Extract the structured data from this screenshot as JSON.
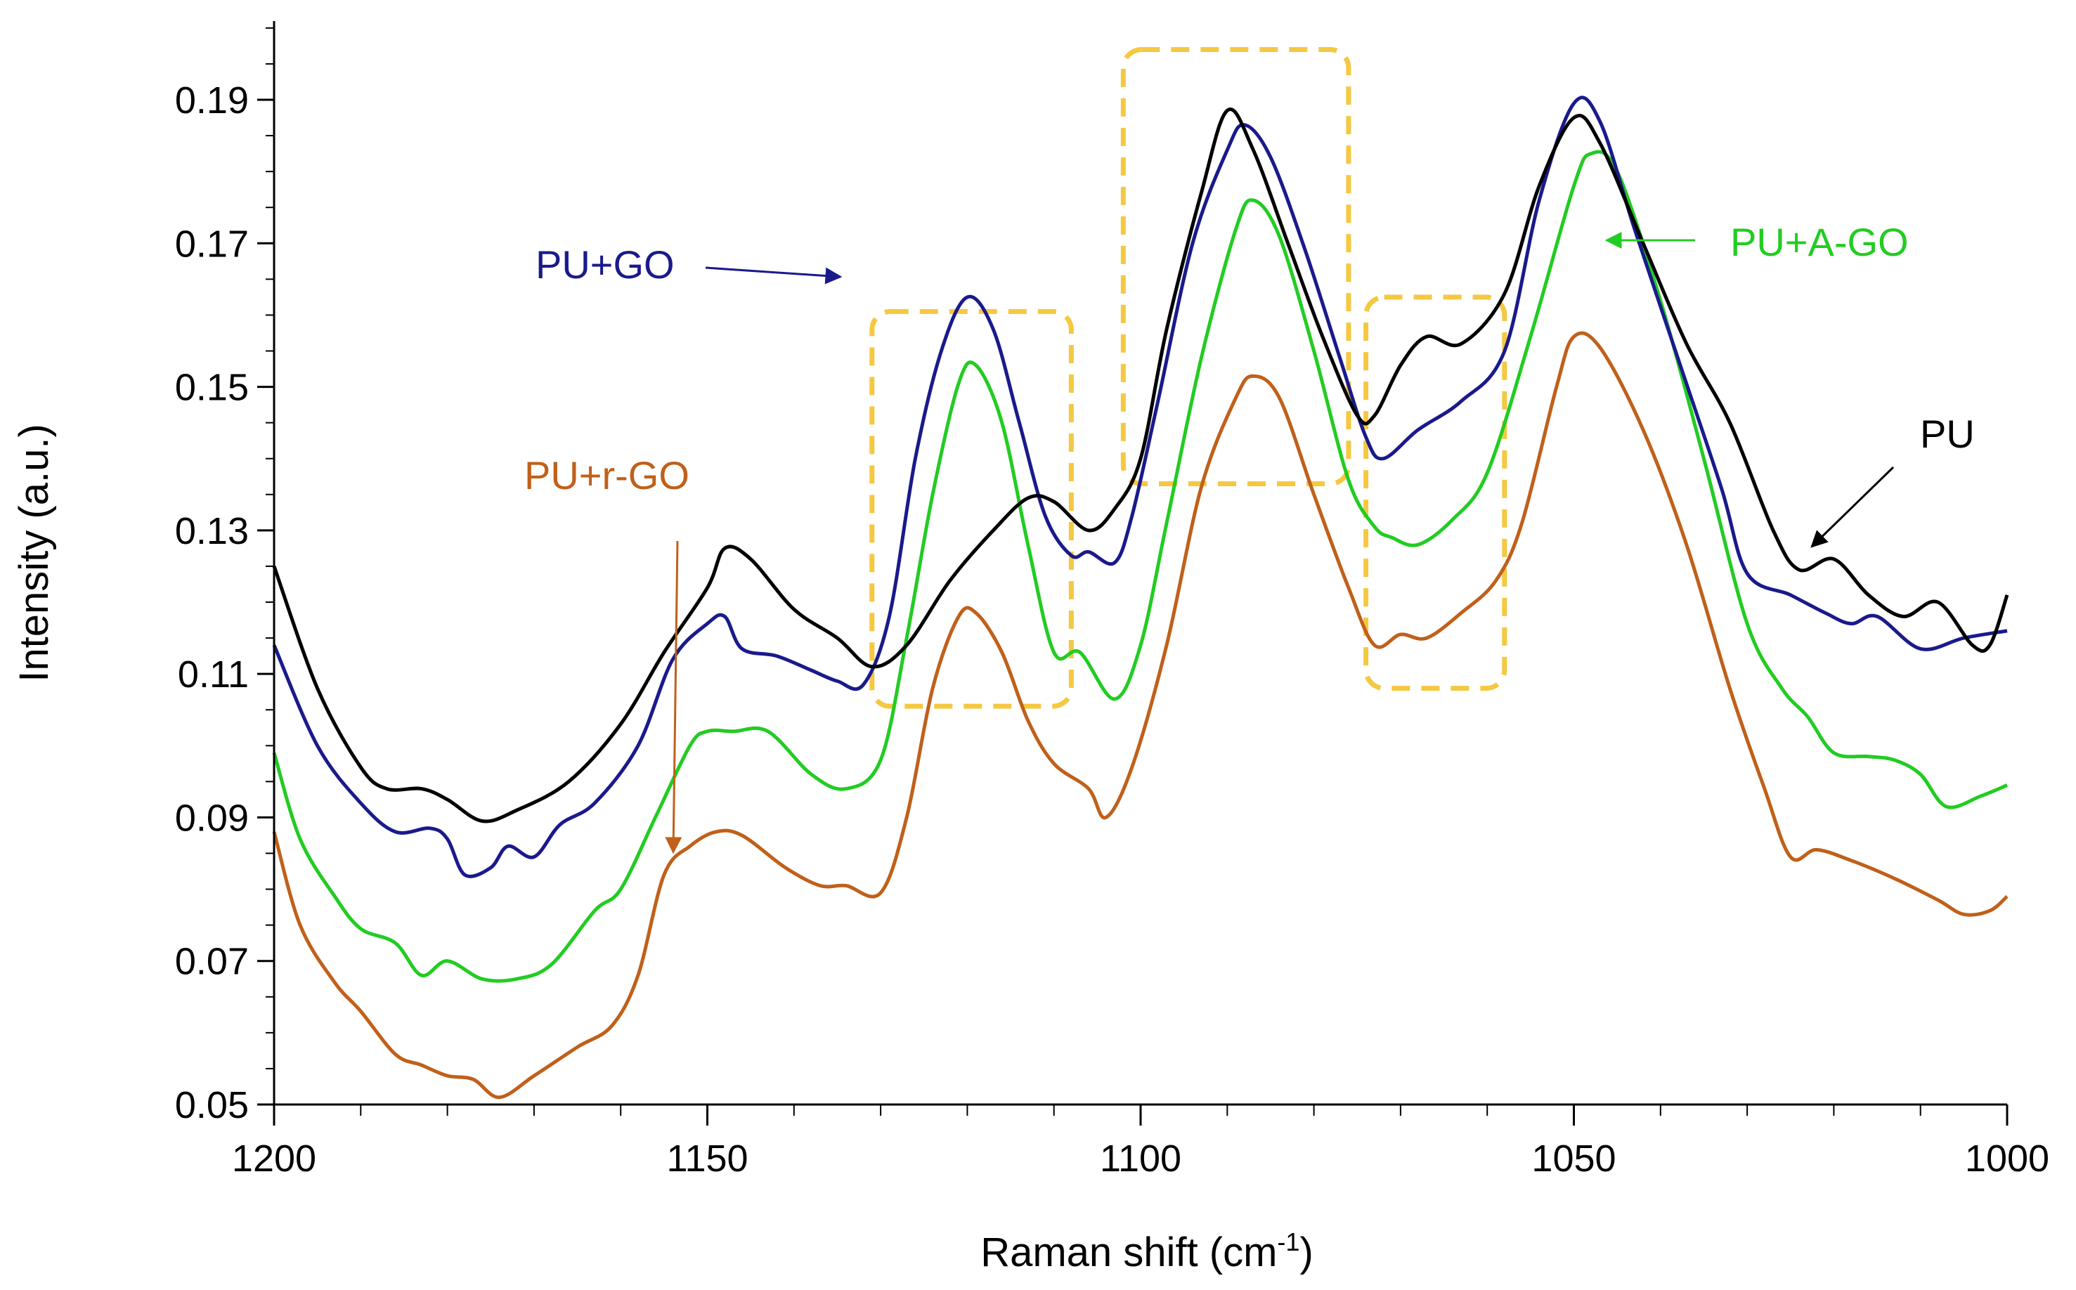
{
  "chart_data": {
    "type": "line",
    "title": "",
    "xlabel": "Raman shift (cm",
    "xlabel_sup": "-1",
    "xlabel_suffix": ")",
    "ylabel": "Intensity (a.u.)",
    "xlim": [
      1200,
      1000
    ],
    "ylim": [
      0.05,
      0.2
    ],
    "x_ticks": [
      1200,
      1150,
      1100,
      1050,
      1000
    ],
    "x_tick_labels": [
      "1200",
      "1150",
      "1100",
      "1050",
      "1000"
    ],
    "y_ticks": [
      0.05,
      0.07,
      0.09,
      0.11,
      0.13,
      0.15,
      0.17,
      0.19
    ],
    "y_tick_labels": [
      "0.05",
      "0.07",
      "0.09",
      "0.11",
      "0.13",
      "0.15",
      "0.17",
      "0.19"
    ],
    "series": [
      {
        "name": "PU",
        "color": "#000000",
        "points": [
          [
            1200,
            0.125
          ],
          [
            1195,
            0.108
          ],
          [
            1190,
            0.097
          ],
          [
            1187,
            0.094
          ],
          [
            1183,
            0.094
          ],
          [
            1180,
            0.0925
          ],
          [
            1176,
            0.0895
          ],
          [
            1172,
            0.091
          ],
          [
            1166,
            0.095
          ],
          [
            1160,
            0.103
          ],
          [
            1155,
            0.113
          ],
          [
            1150,
            0.122
          ],
          [
            1148,
            0.1275
          ],
          [
            1145,
            0.126
          ],
          [
            1140,
            0.119
          ],
          [
            1135,
            0.115
          ],
          [
            1131,
            0.111
          ],
          [
            1127,
            0.114
          ],
          [
            1122,
            0.123
          ],
          [
            1117,
            0.13
          ],
          [
            1113,
            0.1345
          ],
          [
            1110,
            0.134
          ],
          [
            1106,
            0.13
          ],
          [
            1103,
            0.133
          ],
          [
            1100,
            0.14
          ],
          [
            1097,
            0.158
          ],
          [
            1093,
            0.177
          ],
          [
            1090,
            0.1885
          ],
          [
            1087,
            0.183
          ],
          [
            1083,
            0.17
          ],
          [
            1079,
            0.157
          ],
          [
            1075,
            0.146
          ],
          [
            1073,
            0.146
          ],
          [
            1070,
            0.153
          ],
          [
            1067,
            0.157
          ],
          [
            1063,
            0.156
          ],
          [
            1058,
            0.163
          ],
          [
            1054,
            0.178
          ],
          [
            1050,
            0.1875
          ],
          [
            1047,
            0.184
          ],
          [
            1042,
            0.17
          ],
          [
            1037,
            0.156
          ],
          [
            1032,
            0.145
          ],
          [
            1027,
            0.13
          ],
          [
            1024,
            0.1245
          ],
          [
            1020,
            0.126
          ],
          [
            1016,
            0.121
          ],
          [
            1012,
            0.118
          ],
          [
            1008,
            0.12
          ],
          [
            1004,
            0.114
          ],
          [
            1002,
            0.114
          ],
          [
            1000,
            0.121
          ]
        ]
      },
      {
        "name": "PU+GO",
        "color": "#1a1a8c",
        "points": [
          [
            1200,
            0.114
          ],
          [
            1195,
            0.1
          ],
          [
            1190,
            0.092
          ],
          [
            1186,
            0.088
          ],
          [
            1182,
            0.0885
          ],
          [
            1180,
            0.087
          ],
          [
            1178,
            0.082
          ],
          [
            1175,
            0.083
          ],
          [
            1173,
            0.086
          ],
          [
            1170,
            0.0845
          ],
          [
            1167,
            0.089
          ],
          [
            1163,
            0.092
          ],
          [
            1158,
            0.1
          ],
          [
            1154,
            0.112
          ],
          [
            1150,
            0.117
          ],
          [
            1148,
            0.118
          ],
          [
            1146,
            0.1135
          ],
          [
            1142,
            0.1125
          ],
          [
            1138,
            0.1105
          ],
          [
            1135,
            0.109
          ],
          [
            1132,
            0.1085
          ],
          [
            1129,
            0.118
          ],
          [
            1126,
            0.14
          ],
          [
            1123,
            0.155
          ],
          [
            1120,
            0.1625
          ],
          [
            1117,
            0.158
          ],
          [
            1114,
            0.145
          ],
          [
            1111,
            0.132
          ],
          [
            1108,
            0.1265
          ],
          [
            1106,
            0.127
          ],
          [
            1103,
            0.1255
          ],
          [
            1101,
            0.132
          ],
          [
            1098,
            0.148
          ],
          [
            1094,
            0.17
          ],
          [
            1090,
            0.183
          ],
          [
            1088,
            0.1865
          ],
          [
            1085,
            0.182
          ],
          [
            1081,
            0.169
          ],
          [
            1077,
            0.154
          ],
          [
            1074,
            0.143
          ],
          [
            1072,
            0.14
          ],
          [
            1068,
            0.144
          ],
          [
            1063,
            0.148
          ],
          [
            1058,
            0.155
          ],
          [
            1054,
            0.176
          ],
          [
            1050,
            0.1895
          ],
          [
            1047,
            0.187
          ],
          [
            1043,
            0.172
          ],
          [
            1038,
            0.154
          ],
          [
            1033,
            0.136
          ],
          [
            1030,
            0.124
          ],
          [
            1025,
            0.121
          ],
          [
            1021,
            0.1185
          ],
          [
            1018,
            0.117
          ],
          [
            1015,
            0.118
          ],
          [
            1010,
            0.1135
          ],
          [
            1005,
            0.115
          ],
          [
            1000,
            0.116
          ]
        ]
      },
      {
        "name": "PU+A-GO",
        "color": "#22cc22",
        "points": [
          [
            1200,
            0.099
          ],
          [
            1197,
            0.087
          ],
          [
            1193,
            0.079
          ],
          [
            1190,
            0.0745
          ],
          [
            1186,
            0.0725
          ],
          [
            1183,
            0.068
          ],
          [
            1180,
            0.07
          ],
          [
            1176,
            0.0675
          ],
          [
            1172,
            0.0675
          ],
          [
            1168,
            0.0695
          ],
          [
            1163,
            0.077
          ],
          [
            1160,
            0.08
          ],
          [
            1156,
            0.09
          ],
          [
            1152,
            0.1
          ],
          [
            1150,
            0.102
          ],
          [
            1147,
            0.102
          ],
          [
            1143,
            0.102
          ],
          [
            1138,
            0.096
          ],
          [
            1134,
            0.094
          ],
          [
            1130,
            0.098
          ],
          [
            1127,
            0.115
          ],
          [
            1124,
            0.135
          ],
          [
            1121,
            0.1505
          ],
          [
            1119,
            0.153
          ],
          [
            1116,
            0.145
          ],
          [
            1113,
            0.128
          ],
          [
            1110,
            0.113
          ],
          [
            1107,
            0.113
          ],
          [
            1103,
            0.1065
          ],
          [
            1100,
            0.114
          ],
          [
            1097,
            0.131
          ],
          [
            1093,
            0.154
          ],
          [
            1089,
            0.172
          ],
          [
            1087,
            0.176
          ],
          [
            1084,
            0.171
          ],
          [
            1080,
            0.155
          ],
          [
            1076,
            0.137
          ],
          [
            1073,
            0.1305
          ],
          [
            1071,
            0.129
          ],
          [
            1068,
            0.128
          ],
          [
            1064,
            0.1315
          ],
          [
            1060,
            0.138
          ],
          [
            1055,
            0.157
          ],
          [
            1050,
            0.178
          ],
          [
            1048,
            0.1825
          ],
          [
            1045,
            0.18
          ],
          [
            1040,
            0.162
          ],
          [
            1035,
            0.14
          ],
          [
            1030,
            0.117
          ],
          [
            1026,
            0.108
          ],
          [
            1023,
            0.104
          ],
          [
            1020,
            0.099
          ],
          [
            1016,
            0.0985
          ],
          [
            1013,
            0.098
          ],
          [
            1010,
            0.096
          ],
          [
            1007,
            0.0915
          ],
          [
            1003,
            0.093
          ],
          [
            1000,
            0.0945
          ]
        ]
      },
      {
        "name": "PU+r-GO",
        "color": "#c0601a",
        "points": [
          [
            1200,
            0.088
          ],
          [
            1197,
            0.075
          ],
          [
            1193,
            0.067
          ],
          [
            1190,
            0.063
          ],
          [
            1186,
            0.057
          ],
          [
            1183,
            0.0555
          ],
          [
            1180,
            0.054
          ],
          [
            1177,
            0.0535
          ],
          [
            1174,
            0.051
          ],
          [
            1170,
            0.054
          ],
          [
            1165,
            0.058
          ],
          [
            1161,
            0.061
          ],
          [
            1158,
            0.068
          ],
          [
            1155,
            0.082
          ],
          [
            1152,
            0.086
          ],
          [
            1149,
            0.088
          ],
          [
            1146,
            0.0875
          ],
          [
            1141,
            0.083
          ],
          [
            1137,
            0.0805
          ],
          [
            1134,
            0.0805
          ],
          [
            1130,
            0.0795
          ],
          [
            1127,
            0.09
          ],
          [
            1124,
            0.108
          ],
          [
            1121,
            0.118
          ],
          [
            1119,
            0.1185
          ],
          [
            1116,
            0.113
          ],
          [
            1113,
            0.1035
          ],
          [
            1110,
            0.0975
          ],
          [
            1106,
            0.094
          ],
          [
            1104,
            0.09
          ],
          [
            1101,
            0.097
          ],
          [
            1097,
            0.114
          ],
          [
            1093,
            0.136
          ],
          [
            1089,
            0.1485
          ],
          [
            1087,
            0.1515
          ],
          [
            1084,
            0.1485
          ],
          [
            1080,
            0.135
          ],
          [
            1076,
            0.122
          ],
          [
            1073,
            0.114
          ],
          [
            1070,
            0.1155
          ],
          [
            1067,
            0.115
          ],
          [
            1063,
            0.1185
          ],
          [
            1059,
            0.123
          ],
          [
            1056,
            0.131
          ],
          [
            1052,
            0.15
          ],
          [
            1050,
            0.157
          ],
          [
            1047,
            0.1555
          ],
          [
            1042,
            0.144
          ],
          [
            1037,
            0.128
          ],
          [
            1032,
            0.108
          ],
          [
            1028,
            0.094
          ],
          [
            1025,
            0.0845
          ],
          [
            1022,
            0.0855
          ],
          [
            1018,
            0.084
          ],
          [
            1013,
            0.0815
          ],
          [
            1008,
            0.0785
          ],
          [
            1005,
            0.0765
          ],
          [
            1002,
            0.077
          ],
          [
            1000,
            0.079
          ]
        ]
      }
    ],
    "annotations": [
      {
        "text": "PU+GO",
        "color": "#1a1a8c"
      },
      {
        "text": "PU+A-GO",
        "color": "#22cc22"
      },
      {
        "text": "PU",
        "color": "#000000"
      },
      {
        "text": "PU+r-GO",
        "color": "#c0601a"
      }
    ],
    "highlight_regions": [
      {
        "x_range": [
          1131,
          1108
        ],
        "y_range": [
          0.1055,
          0.1605
        ],
        "color": "#f5c842"
      },
      {
        "x_range": [
          1102,
          1076
        ],
        "y_range": [
          0.1365,
          0.197
        ],
        "color": "#f5c842"
      },
      {
        "x_range": [
          1074,
          1058
        ],
        "y_range": [
          0.108,
          0.1625
        ],
        "color": "#f5c842"
      }
    ]
  }
}
